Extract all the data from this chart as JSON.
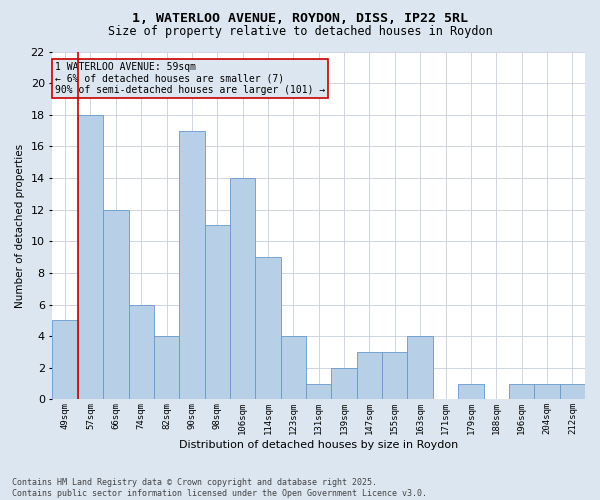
{
  "title1": "1, WATERLOO AVENUE, ROYDON, DISS, IP22 5RL",
  "title2": "Size of property relative to detached houses in Roydon",
  "xlabel": "Distribution of detached houses by size in Roydon",
  "ylabel": "Number of detached properties",
  "categories": [
    "49sqm",
    "57sqm",
    "66sqm",
    "74sqm",
    "82sqm",
    "90sqm",
    "98sqm",
    "106sqm",
    "114sqm",
    "123sqm",
    "131sqm",
    "139sqm",
    "147sqm",
    "155sqm",
    "163sqm",
    "171sqm",
    "179sqm",
    "188sqm",
    "196sqm",
    "204sqm",
    "212sqm"
  ],
  "values": [
    5,
    18,
    12,
    6,
    4,
    17,
    11,
    14,
    9,
    4,
    1,
    2,
    3,
    3,
    4,
    0,
    1,
    0,
    1,
    1,
    1
  ],
  "bar_color": "#b8cfe8",
  "bar_edge_color": "#6699cc",
  "grid_color": "#c8d0dc",
  "bg_color": "#dce6f0",
  "plot_bg_color": "#ffffff",
  "marker_color": "#cc0000",
  "annotation_line1": "1 WATERLOO AVENUE: 59sqm",
  "annotation_line2": "← 6% of detached houses are smaller (7)",
  "annotation_line3": "90% of semi-detached houses are larger (101) →",
  "annotation_box_color": "#cc0000",
  "footnote": "Contains HM Land Registry data © Crown copyright and database right 2025.\nContains public sector information licensed under the Open Government Licence v3.0.",
  "ylim": [
    0,
    22
  ],
  "yticks": [
    0,
    2,
    4,
    6,
    8,
    10,
    12,
    14,
    16,
    18,
    20,
    22
  ]
}
